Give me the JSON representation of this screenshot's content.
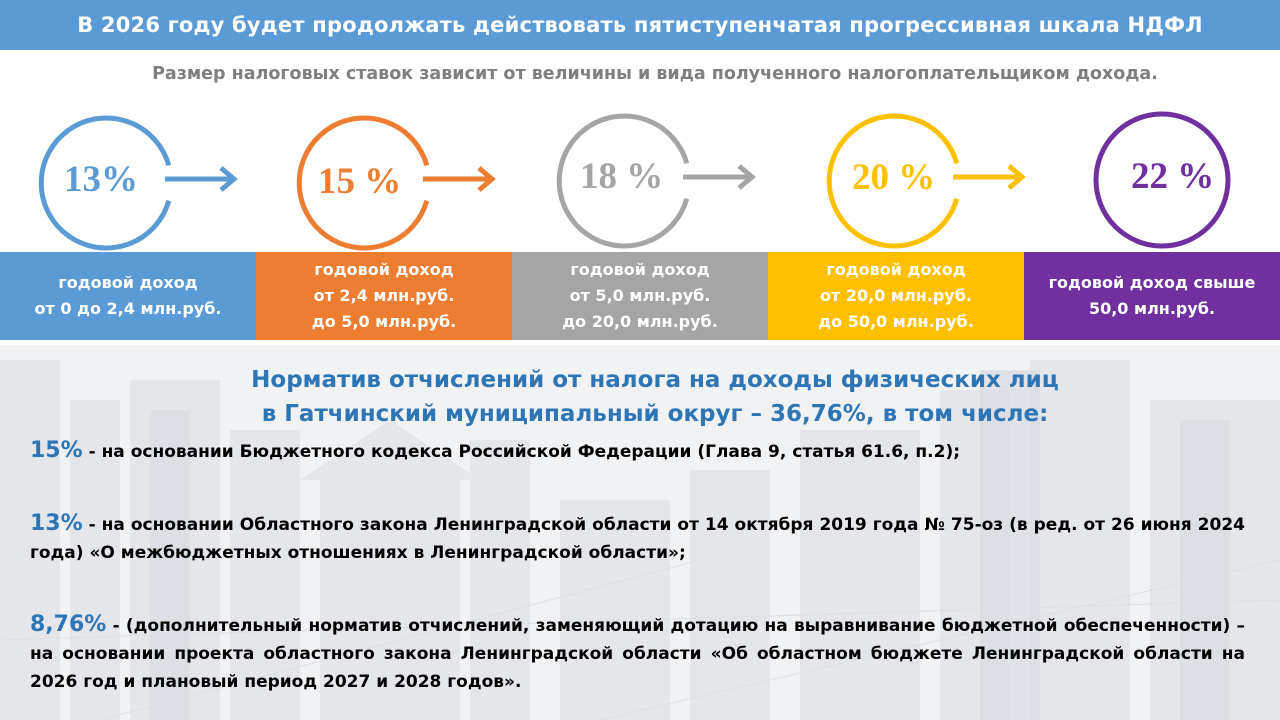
{
  "header": {
    "title": "В 2026 году будет продолжать действовать пятиступенчатая прогрессивная шкала НДФЛ"
  },
  "subtitle": "Размер налоговых ставок зависит от величины и вида полученного налогоплательщиком дохода.",
  "colors": {
    "header": "#5b9bd5",
    "blue": "#5b9bd5",
    "orange": "#ed7d31",
    "gray": "#a5a5a5",
    "yellow": "#ffc000",
    "purple": "#7030a0",
    "accent_text": "#2e75b6"
  },
  "rates": [
    {
      "value": "13%",
      "color": "#5b9bd5",
      "icon": "circle-arrow-icon"
    },
    {
      "value": "15 %",
      "color": "#ed7d31",
      "icon": "circle-arrow-icon"
    },
    {
      "value": "18 %",
      "color": "#a5a5a5",
      "icon": "circle-arrow-icon"
    },
    {
      "value": "20 %",
      "color": "#ffc000",
      "icon": "circle-arrow-icon"
    },
    {
      "value": "22 %",
      "color": "#7030a0",
      "icon": "circle-icon"
    }
  ],
  "brackets": [
    {
      "lines": [
        "годовой доход",
        "от 0 до 2,4 млн.руб."
      ],
      "color": "#5b9bd5"
    },
    {
      "lines": [
        "годовой доход",
        "от 2,4 млн.руб.",
        "до 5,0 млн.руб."
      ],
      "color": "#ed7d31"
    },
    {
      "lines": [
        "годовой доход",
        "от 5,0 млн.руб.",
        "до 20,0 млн.руб."
      ],
      "color": "#a5a5a5"
    },
    {
      "lines": [
        "годовой доход",
        "от 20,0 млн.руб.",
        "до 50,0 млн.руб."
      ],
      "color": "#ffc000"
    },
    {
      "lines": [
        "годовой доход свыше",
        "50,0 млн.руб."
      ],
      "color": "#7030a0"
    }
  ],
  "norm": {
    "title_line1": "Норматив отчислений от налога на доходы физических лиц",
    "title_line2": "в Гатчинский муниципальный округ – 36,76%, в том числе:",
    "items": [
      {
        "pct": "15%",
        "text": " - на основании Бюджетного кодекса Российской Федерации (Глава 9, статья 61.6, п.2);"
      },
      {
        "pct": "13%",
        "text": " - на основании Областного закона Ленинградской области от 14 октября 2019 года № 75-оз (в ред. от 26 июня 2024 года) «О межбюджетных отношениях в Ленинградской области»;"
      },
      {
        "pct": "8,76%",
        "text": " - (дополнительный норматив отчислений, заменяющий дотацию на выравнивание бюджетной обеспеченности) – на основании проекта областного закона Ленинградской области «Об областном бюджете Ленинградской области на 2026 год и плановый период 2027 и 2028 годов»."
      }
    ]
  }
}
